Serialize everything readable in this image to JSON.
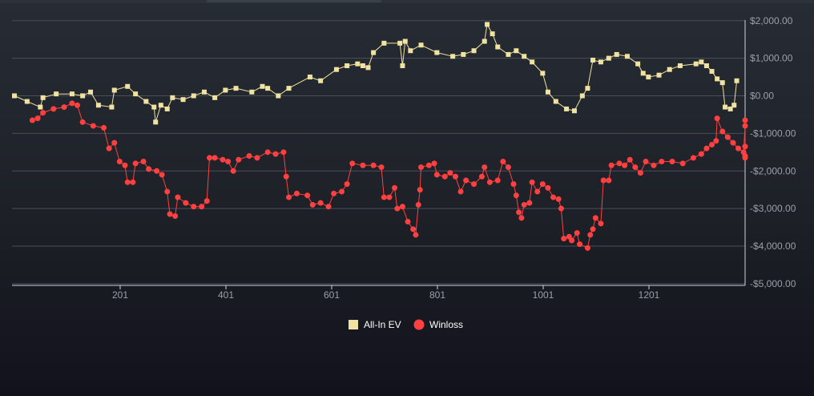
{
  "chart_data": {
    "type": "line",
    "title": "",
    "xlabel": "",
    "ylabel": "",
    "xlim": [
      1,
      1370
    ],
    "ylim": [
      -5000,
      2000
    ],
    "x_ticks": [
      201,
      401,
      601,
      801,
      1001,
      1201
    ],
    "x_tick_labels": [
      "201",
      "401",
      "601",
      "801",
      "1001",
      "1201"
    ],
    "y_ticks": [
      2000,
      1000,
      0,
      -1000,
      -2000,
      -3000,
      -4000,
      -5000
    ],
    "y_tick_labels": [
      "$2,000.00",
      "$1,000.00",
      "$0.00",
      "-$1,000.00",
      "-$2,000.00",
      "-$3,000.00",
      "-$4,000.00",
      "-$5,000.00"
    ],
    "grid": true,
    "legend_position": "bottom-center",
    "series": [
      {
        "name": "All-In EV",
        "color": "#f0e2a0",
        "marker": "square",
        "points": [
          [
            1,
            0
          ],
          [
            25,
            -150
          ],
          [
            50,
            -300
          ],
          [
            55,
            -50
          ],
          [
            80,
            50
          ],
          [
            110,
            50
          ],
          [
            130,
            0
          ],
          [
            145,
            100
          ],
          [
            160,
            -250
          ],
          [
            185,
            -300
          ],
          [
            190,
            150
          ],
          [
            215,
            250
          ],
          [
            230,
            50
          ],
          [
            250,
            -150
          ],
          [
            265,
            -300
          ],
          [
            268,
            -700
          ],
          [
            278,
            -250
          ],
          [
            290,
            -350
          ],
          [
            300,
            -50
          ],
          [
            320,
            -100
          ],
          [
            340,
            0
          ],
          [
            360,
            100
          ],
          [
            380,
            -50
          ],
          [
            400,
            150
          ],
          [
            420,
            200
          ],
          [
            450,
            100
          ],
          [
            470,
            250
          ],
          [
            480,
            200
          ],
          [
            500,
            0
          ],
          [
            520,
            200
          ],
          [
            560,
            500
          ],
          [
            580,
            400
          ],
          [
            610,
            700
          ],
          [
            630,
            800
          ],
          [
            650,
            850
          ],
          [
            660,
            800
          ],
          [
            670,
            750
          ],
          [
            680,
            1150
          ],
          [
            700,
            1400
          ],
          [
            730,
            1400
          ],
          [
            735,
            800
          ],
          [
            740,
            1450
          ],
          [
            750,
            1200
          ],
          [
            770,
            1350
          ],
          [
            800,
            1150
          ],
          [
            830,
            1050
          ],
          [
            850,
            1100
          ],
          [
            870,
            1200
          ],
          [
            890,
            1450
          ],
          [
            895,
            1900
          ],
          [
            905,
            1650
          ],
          [
            915,
            1300
          ],
          [
            935,
            1100
          ],
          [
            950,
            1200
          ],
          [
            965,
            1050
          ],
          [
            980,
            900
          ],
          [
            1000,
            600
          ],
          [
            1010,
            100
          ],
          [
            1025,
            -150
          ],
          [
            1045,
            -350
          ],
          [
            1060,
            -400
          ],
          [
            1075,
            0
          ],
          [
            1085,
            200
          ],
          [
            1095,
            950
          ],
          [
            1110,
            900
          ],
          [
            1125,
            1000
          ],
          [
            1140,
            1100
          ],
          [
            1160,
            1050
          ],
          [
            1180,
            850
          ],
          [
            1190,
            600
          ],
          [
            1200,
            500
          ],
          [
            1220,
            550
          ],
          [
            1240,
            700
          ],
          [
            1260,
            800
          ],
          [
            1290,
            850
          ],
          [
            1300,
            900
          ],
          [
            1310,
            800
          ],
          [
            1320,
            650
          ],
          [
            1330,
            450
          ],
          [
            1340,
            350
          ],
          [
            1345,
            -300
          ],
          [
            1355,
            -350
          ],
          [
            1362,
            -250
          ],
          [
            1367,
            400
          ]
        ]
      },
      {
        "name": "Winloss",
        "color": "#ff4040",
        "marker": "circle",
        "points": [
          [
            35,
            -650
          ],
          [
            45,
            -600
          ],
          [
            55,
            -450
          ],
          [
            75,
            -350
          ],
          [
            95,
            -300
          ],
          [
            110,
            -200
          ],
          [
            120,
            -250
          ],
          [
            130,
            -700
          ],
          [
            150,
            -800
          ],
          [
            170,
            -850
          ],
          [
            180,
            -1400
          ],
          [
            190,
            -1250
          ],
          [
            200,
            -1750
          ],
          [
            210,
            -1850
          ],
          [
            215,
            -2300
          ],
          [
            225,
            -2300
          ],
          [
            230,
            -1800
          ],
          [
            245,
            -1750
          ],
          [
            255,
            -1950
          ],
          [
            270,
            -2000
          ],
          [
            280,
            -2100
          ],
          [
            290,
            -2550
          ],
          [
            295,
            -3150
          ],
          [
            305,
            -3200
          ],
          [
            310,
            -2700
          ],
          [
            325,
            -2850
          ],
          [
            340,
            -2950
          ],
          [
            355,
            -2950
          ],
          [
            365,
            -2800
          ],
          [
            370,
            -1650
          ],
          [
            380,
            -1650
          ],
          [
            395,
            -1700
          ],
          [
            405,
            -1750
          ],
          [
            415,
            -2000
          ],
          [
            425,
            -1700
          ],
          [
            445,
            -1600
          ],
          [
            460,
            -1650
          ],
          [
            480,
            -1500
          ],
          [
            495,
            -1550
          ],
          [
            510,
            -1500
          ],
          [
            515,
            -2150
          ],
          [
            520,
            -2700
          ],
          [
            535,
            -2600
          ],
          [
            555,
            -2650
          ],
          [
            565,
            -2900
          ],
          [
            580,
            -2850
          ],
          [
            595,
            -2950
          ],
          [
            605,
            -2600
          ],
          [
            620,
            -2550
          ],
          [
            630,
            -2350
          ],
          [
            640,
            -1800
          ],
          [
            660,
            -1850
          ],
          [
            680,
            -1850
          ],
          [
            695,
            -1900
          ],
          [
            700,
            -2700
          ],
          [
            710,
            -2700
          ],
          [
            720,
            -2450
          ],
          [
            725,
            -3000
          ],
          [
            735,
            -2950
          ],
          [
            745,
            -3350
          ],
          [
            755,
            -3550
          ],
          [
            760,
            -3700
          ],
          [
            765,
            -2900
          ],
          [
            768,
            -2500
          ],
          [
            770,
            -1900
          ],
          [
            785,
            -1850
          ],
          [
            795,
            -1800
          ],
          [
            800,
            -2100
          ],
          [
            815,
            -2150
          ],
          [
            825,
            -2050
          ],
          [
            835,
            -2150
          ],
          [
            845,
            -2550
          ],
          [
            855,
            -2250
          ],
          [
            870,
            -2350
          ],
          [
            885,
            -2150
          ],
          [
            890,
            -1900
          ],
          [
            900,
            -2300
          ],
          [
            915,
            -2250
          ],
          [
            925,
            -1750
          ],
          [
            935,
            -1900
          ],
          [
            945,
            -2350
          ],
          [
            950,
            -2650
          ],
          [
            955,
            -3100
          ],
          [
            960,
            -3250
          ],
          [
            965,
            -2900
          ],
          [
            975,
            -2850
          ],
          [
            980,
            -2300
          ],
          [
            990,
            -2550
          ],
          [
            1000,
            -2350
          ],
          [
            1010,
            -2450
          ],
          [
            1020,
            -2700
          ],
          [
            1030,
            -2750
          ],
          [
            1035,
            -3000
          ],
          [
            1040,
            -3800
          ],
          [
            1050,
            -3750
          ],
          [
            1055,
            -3850
          ],
          [
            1065,
            -3650
          ],
          [
            1070,
            -3950
          ],
          [
            1085,
            -4050
          ],
          [
            1090,
            -3700
          ],
          [
            1095,
            -3550
          ],
          [
            1100,
            -3250
          ],
          [
            1110,
            -3400
          ],
          [
            1115,
            -2250
          ],
          [
            1125,
            -2250
          ],
          [
            1130,
            -1850
          ],
          [
            1145,
            -1800
          ],
          [
            1155,
            -1850
          ],
          [
            1165,
            -1700
          ],
          [
            1175,
            -1900
          ],
          [
            1185,
            -2050
          ],
          [
            1195,
            -1750
          ],
          [
            1210,
            -1850
          ],
          [
            1225,
            -1750
          ],
          [
            1245,
            -1750
          ],
          [
            1265,
            -1800
          ],
          [
            1285,
            -1650
          ],
          [
            1300,
            -1550
          ],
          [
            1310,
            -1400
          ],
          [
            1320,
            -1300
          ],
          [
            1328,
            -1200
          ],
          [
            1330,
            -600
          ],
          [
            1340,
            -950
          ],
          [
            1350,
            -1100
          ],
          [
            1360,
            -1250
          ],
          [
            1370,
            -1400
          ],
          [
            1380,
            -1500
          ],
          [
            1385,
            -800
          ],
          [
            1390,
            -1350
          ],
          [
            1395,
            -1650
          ],
          [
            1398,
            -1600
          ],
          [
            1400,
            -650
          ]
        ]
      }
    ]
  }
}
